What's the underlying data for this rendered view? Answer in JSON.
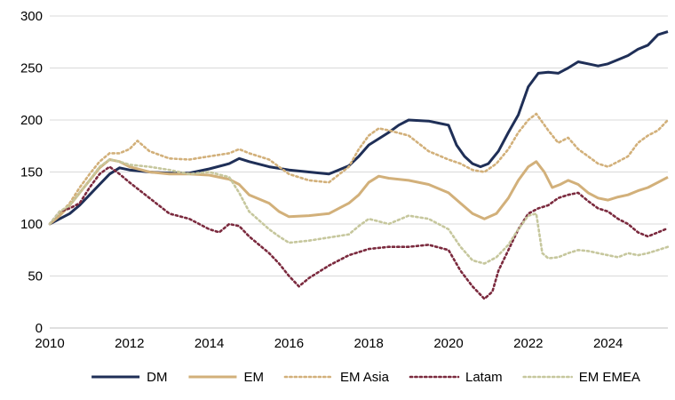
{
  "chart_data": {
    "type": "line",
    "title": "",
    "xlabel": "",
    "ylabel": "",
    "xlim": [
      2010,
      2025.5
    ],
    "ylim": [
      0,
      300
    ],
    "x_ticks": [
      {
        "value": 2010,
        "label": "2010"
      },
      {
        "value": 2012,
        "label": "2012"
      },
      {
        "value": 2014,
        "label": "2014"
      },
      {
        "value": 2016,
        "label": "2016"
      },
      {
        "value": 2018,
        "label": "2018"
      },
      {
        "value": 2020,
        "label": "2020"
      },
      {
        "value": 2022,
        "label": "2022"
      },
      {
        "value": 2024,
        "label": "2024"
      }
    ],
    "y_ticks": [
      {
        "value": 0,
        "label": "0"
      },
      {
        "value": 50,
        "label": "50"
      },
      {
        "value": 100,
        "label": "100"
      },
      {
        "value": 150,
        "label": "150"
      },
      {
        "value": 200,
        "label": "200"
      },
      {
        "value": 250,
        "label": "250"
      },
      {
        "value": 300,
        "label": "300"
      }
    ],
    "grid": {
      "horizontal": true,
      "vertical": false
    },
    "legend_position": "bottom",
    "series": [
      {
        "name": "DM",
        "color": "#1f2f57",
        "style": "solid",
        "points": [
          [
            2010,
            100
          ],
          [
            2010.25,
            105
          ],
          [
            2010.5,
            110
          ],
          [
            2010.75,
            118
          ],
          [
            2011,
            128
          ],
          [
            2011.25,
            138
          ],
          [
            2011.5,
            148
          ],
          [
            2011.75,
            154
          ],
          [
            2012,
            152
          ],
          [
            2012.5,
            150
          ],
          [
            2013,
            149
          ],
          [
            2013.5,
            149
          ],
          [
            2014,
            153
          ],
          [
            2014.5,
            158
          ],
          [
            2014.75,
            163
          ],
          [
            2015,
            160
          ],
          [
            2015.5,
            155
          ],
          [
            2016,
            152
          ],
          [
            2016.5,
            150
          ],
          [
            2017,
            148
          ],
          [
            2017.5,
            156
          ],
          [
            2017.75,
            165
          ],
          [
            2018,
            176
          ],
          [
            2018.5,
            188
          ],
          [
            2018.75,
            195
          ],
          [
            2019,
            200
          ],
          [
            2019.5,
            199
          ],
          [
            2019.75,
            197
          ],
          [
            2020,
            195
          ],
          [
            2020.2,
            176
          ],
          [
            2020.4,
            165
          ],
          [
            2020.6,
            158
          ],
          [
            2020.8,
            155
          ],
          [
            2021,
            158
          ],
          [
            2021.25,
            170
          ],
          [
            2021.5,
            188
          ],
          [
            2021.75,
            205
          ],
          [
            2022,
            232
          ],
          [
            2022.25,
            245
          ],
          [
            2022.5,
            246
          ],
          [
            2022.75,
            245
          ],
          [
            2023,
            250
          ],
          [
            2023.25,
            256
          ],
          [
            2023.5,
            254
          ],
          [
            2023.75,
            252
          ],
          [
            2024,
            254
          ],
          [
            2024.25,
            258
          ],
          [
            2024.5,
            262
          ],
          [
            2024.75,
            268
          ],
          [
            2025,
            272
          ],
          [
            2025.25,
            282
          ],
          [
            2025.5,
            285
          ]
        ]
      },
      {
        "name": "EM",
        "color": "#d2b07a",
        "style": "solid",
        "points": [
          [
            2010,
            100
          ],
          [
            2010.25,
            108
          ],
          [
            2010.5,
            118
          ],
          [
            2010.75,
            130
          ],
          [
            2011,
            142
          ],
          [
            2011.25,
            154
          ],
          [
            2011.5,
            162
          ],
          [
            2011.75,
            160
          ],
          [
            2012,
            155
          ],
          [
            2012.5,
            150
          ],
          [
            2013,
            148
          ],
          [
            2013.5,
            148
          ],
          [
            2014,
            147
          ],
          [
            2014.5,
            143
          ],
          [
            2014.75,
            138
          ],
          [
            2015,
            128
          ],
          [
            2015.5,
            120
          ],
          [
            2015.75,
            112
          ],
          [
            2016,
            107
          ],
          [
            2016.5,
            108
          ],
          [
            2017,
            110
          ],
          [
            2017.5,
            120
          ],
          [
            2017.75,
            128
          ],
          [
            2018,
            140
          ],
          [
            2018.25,
            146
          ],
          [
            2018.5,
            144
          ],
          [
            2019,
            142
          ],
          [
            2019.5,
            138
          ],
          [
            2020,
            130
          ],
          [
            2020.3,
            120
          ],
          [
            2020.6,
            110
          ],
          [
            2020.9,
            105
          ],
          [
            2021.2,
            110
          ],
          [
            2021.5,
            125
          ],
          [
            2021.75,
            142
          ],
          [
            2022,
            155
          ],
          [
            2022.2,
            160
          ],
          [
            2022.4,
            150
          ],
          [
            2022.6,
            135
          ],
          [
            2022.8,
            138
          ],
          [
            2023,
            142
          ],
          [
            2023.25,
            138
          ],
          [
            2023.5,
            130
          ],
          [
            2023.75,
            125
          ],
          [
            2024,
            123
          ],
          [
            2024.25,
            126
          ],
          [
            2024.5,
            128
          ],
          [
            2024.75,
            132
          ],
          [
            2025,
            135
          ],
          [
            2025.25,
            140
          ],
          [
            2025.5,
            145
          ]
        ]
      },
      {
        "name": "EM Asia",
        "color": "#d2b07a",
        "style": "dotted",
        "points": [
          [
            2010,
            100
          ],
          [
            2010.25,
            110
          ],
          [
            2010.5,
            120
          ],
          [
            2010.75,
            135
          ],
          [
            2011,
            148
          ],
          [
            2011.25,
            160
          ],
          [
            2011.5,
            168
          ],
          [
            2011.75,
            168
          ],
          [
            2012,
            172
          ],
          [
            2012.2,
            180
          ],
          [
            2012.5,
            170
          ],
          [
            2013,
            163
          ],
          [
            2013.5,
            162
          ],
          [
            2014,
            165
          ],
          [
            2014.5,
            168
          ],
          [
            2014.75,
            172
          ],
          [
            2015,
            168
          ],
          [
            2015.5,
            162
          ],
          [
            2016,
            148
          ],
          [
            2016.5,
            142
          ],
          [
            2017,
            140
          ],
          [
            2017.5,
            155
          ],
          [
            2017.75,
            172
          ],
          [
            2018,
            185
          ],
          [
            2018.25,
            192
          ],
          [
            2018.5,
            190
          ],
          [
            2019,
            185
          ],
          [
            2019.5,
            170
          ],
          [
            2020,
            162
          ],
          [
            2020.3,
            158
          ],
          [
            2020.6,
            152
          ],
          [
            2020.9,
            150
          ],
          [
            2021.2,
            158
          ],
          [
            2021.5,
            172
          ],
          [
            2021.75,
            188
          ],
          [
            2022,
            200
          ],
          [
            2022.2,
            206
          ],
          [
            2022.5,
            190
          ],
          [
            2022.75,
            178
          ],
          [
            2023,
            183
          ],
          [
            2023.25,
            172
          ],
          [
            2023.5,
            165
          ],
          [
            2023.75,
            158
          ],
          [
            2024,
            155
          ],
          [
            2024.25,
            160
          ],
          [
            2024.5,
            165
          ],
          [
            2024.75,
            178
          ],
          [
            2025,
            185
          ],
          [
            2025.25,
            190
          ],
          [
            2025.5,
            200
          ]
        ]
      },
      {
        "name": "Latam",
        "color": "#7b2a3e",
        "style": "dotted",
        "points": [
          [
            2010,
            100
          ],
          [
            2010.25,
            112
          ],
          [
            2010.5,
            115
          ],
          [
            2010.75,
            120
          ],
          [
            2011,
            135
          ],
          [
            2011.25,
            148
          ],
          [
            2011.5,
            155
          ],
          [
            2011.75,
            148
          ],
          [
            2012,
            140
          ],
          [
            2012.5,
            125
          ],
          [
            2013,
            110
          ],
          [
            2013.5,
            105
          ],
          [
            2014,
            95
          ],
          [
            2014.25,
            92
          ],
          [
            2014.5,
            100
          ],
          [
            2014.75,
            98
          ],
          [
            2015,
            88
          ],
          [
            2015.5,
            72
          ],
          [
            2015.75,
            62
          ],
          [
            2016,
            50
          ],
          [
            2016.25,
            40
          ],
          [
            2016.5,
            48
          ],
          [
            2017,
            60
          ],
          [
            2017.5,
            70
          ],
          [
            2018,
            76
          ],
          [
            2018.5,
            78
          ],
          [
            2019,
            78
          ],
          [
            2019.5,
            80
          ],
          [
            2020,
            75
          ],
          [
            2020.3,
            55
          ],
          [
            2020.6,
            40
          ],
          [
            2020.9,
            28
          ],
          [
            2021.1,
            35
          ],
          [
            2021.25,
            55
          ],
          [
            2021.5,
            75
          ],
          [
            2021.75,
            95
          ],
          [
            2022,
            110
          ],
          [
            2022.25,
            115
          ],
          [
            2022.5,
            118
          ],
          [
            2022.75,
            125
          ],
          [
            2023,
            128
          ],
          [
            2023.25,
            130
          ],
          [
            2023.5,
            122
          ],
          [
            2023.75,
            115
          ],
          [
            2024,
            112
          ],
          [
            2024.25,
            105
          ],
          [
            2024.5,
            100
          ],
          [
            2024.75,
            92
          ],
          [
            2025,
            88
          ],
          [
            2025.25,
            92
          ],
          [
            2025.5,
            96
          ]
        ]
      },
      {
        "name": "EM EMEA",
        "color": "#c6c79d",
        "style": "dotted",
        "points": [
          [
            2010,
            100
          ],
          [
            2010.25,
            112
          ],
          [
            2010.5,
            118
          ],
          [
            2010.75,
            130
          ],
          [
            2011,
            142
          ],
          [
            2011.25,
            155
          ],
          [
            2011.5,
            162
          ],
          [
            2011.75,
            160
          ],
          [
            2012,
            157
          ],
          [
            2012.5,
            155
          ],
          [
            2013,
            152
          ],
          [
            2013.5,
            148
          ],
          [
            2014,
            150
          ],
          [
            2014.5,
            145
          ],
          [
            2014.75,
            130
          ],
          [
            2015,
            112
          ],
          [
            2015.5,
            95
          ],
          [
            2015.75,
            88
          ],
          [
            2016,
            82
          ],
          [
            2016.5,
            84
          ],
          [
            2017,
            87
          ],
          [
            2017.5,
            90
          ],
          [
            2017.75,
            98
          ],
          [
            2018,
            105
          ],
          [
            2018.5,
            100
          ],
          [
            2019,
            108
          ],
          [
            2019.5,
            105
          ],
          [
            2019.75,
            100
          ],
          [
            2020,
            95
          ],
          [
            2020.3,
            78
          ],
          [
            2020.6,
            65
          ],
          [
            2020.9,
            62
          ],
          [
            2021.2,
            68
          ],
          [
            2021.5,
            80
          ],
          [
            2021.75,
            95
          ],
          [
            2022,
            108
          ],
          [
            2022.2,
            110
          ],
          [
            2022.35,
            72
          ],
          [
            2022.5,
            67
          ],
          [
            2022.75,
            68
          ],
          [
            2023,
            72
          ],
          [
            2023.25,
            75
          ],
          [
            2023.5,
            74
          ],
          [
            2023.75,
            72
          ],
          [
            2024,
            70
          ],
          [
            2024.25,
            68
          ],
          [
            2024.5,
            72
          ],
          [
            2024.75,
            70
          ],
          [
            2025,
            72
          ],
          [
            2025.25,
            75
          ],
          [
            2025.5,
            78
          ]
        ]
      }
    ]
  }
}
